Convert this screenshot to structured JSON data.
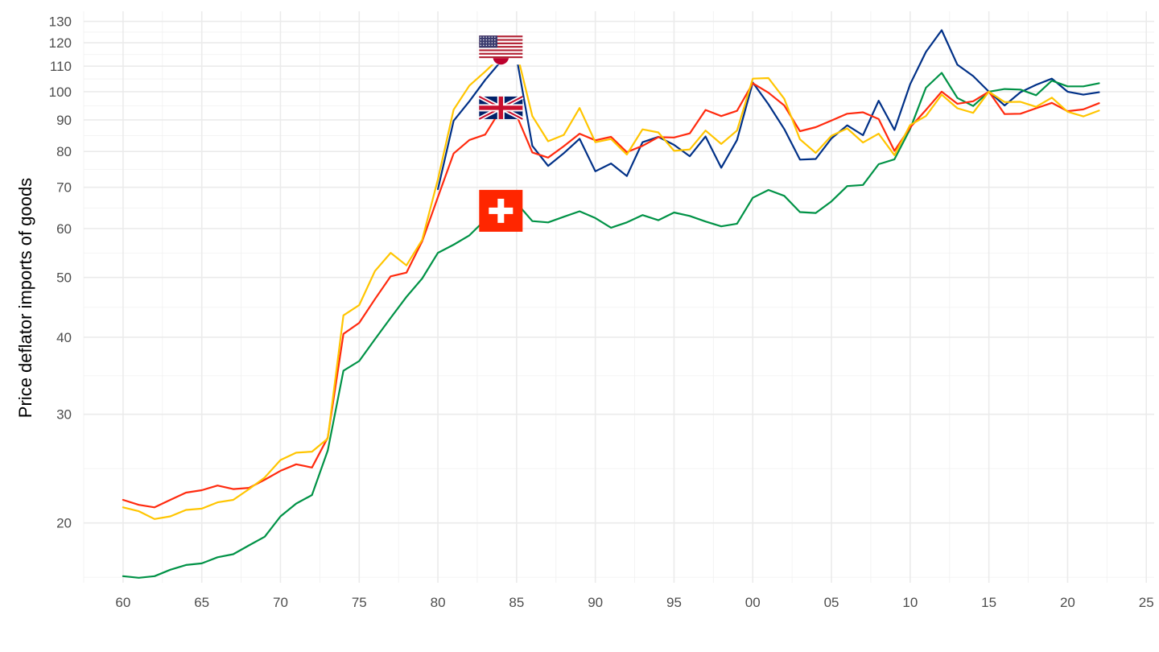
{
  "chart_data": {
    "type": "line",
    "ylabel": "Price deflator imports of goods",
    "xlabel": "",
    "y_scale": "log",
    "ylim": [
      16,
      135
    ],
    "xlim": [
      1957.5,
      2025.5
    ],
    "grid": true,
    "y_ticks": [
      20,
      30,
      40,
      50,
      60,
      70,
      80,
      90,
      100,
      110,
      120,
      130
    ],
    "y_tick_labels": [
      "20",
      "30",
      "40",
      "50",
      "60",
      "70",
      "80",
      "90",
      "100",
      "110",
      "120",
      "130"
    ],
    "x_ticks": [
      1960,
      1965,
      1970,
      1975,
      1980,
      1985,
      1990,
      1995,
      2000,
      2005,
      2010,
      2015,
      2020,
      2025
    ],
    "x_tick_labels": [
      "60",
      "65",
      "70",
      "75",
      "80",
      "85",
      "90",
      "95",
      "00",
      "05",
      "10",
      "15",
      "20",
      "25"
    ],
    "x": [
      1960,
      1961,
      1962,
      1963,
      1964,
      1965,
      1966,
      1967,
      1968,
      1969,
      1970,
      1971,
      1972,
      1973,
      1974,
      1975,
      1976,
      1977,
      1978,
      1979,
      1980,
      1981,
      1982,
      1983,
      1984,
      1985,
      1986,
      1987,
      1988,
      1989,
      1990,
      1991,
      1992,
      1993,
      1994,
      1995,
      1996,
      1997,
      1998,
      1999,
      2000,
      2001,
      2002,
      2003,
      2004,
      2005,
      2006,
      2007,
      2008,
      2009,
      2010,
      2011,
      2012,
      2013,
      2014,
      2015,
      2016,
      2017,
      2018,
      2019,
      2020,
      2021,
      2022
    ],
    "series": [
      {
        "flag": "united-states",
        "color": "#003087",
        "start_year": 1980,
        "values": [
          null,
          null,
          null,
          null,
          null,
          null,
          null,
          null,
          null,
          null,
          null,
          null,
          null,
          null,
          null,
          null,
          null,
          null,
          null,
          null,
          69.5,
          89.7,
          96.5,
          104.5,
          112,
          113.5,
          81.7,
          75.8,
          79.5,
          83.9,
          74.3,
          76.5,
          73,
          82.8,
          84.5,
          82,
          78.6,
          84.6,
          75.3,
          83.5,
          103.5,
          95.4,
          87,
          77.6,
          77.8,
          84,
          88.2,
          85,
          96.7,
          86.7,
          102.8,
          116,
          125.8,
          110.6,
          106,
          100,
          95,
          99.8,
          102.6,
          105,
          100,
          98.9,
          99.8
        ]
      },
      {
        "flag": "switzerland",
        "color": "#009246",
        "start_year": 1960,
        "values": [
          16.4,
          16.3,
          16.4,
          16.8,
          17.1,
          17.2,
          17.6,
          17.8,
          18.4,
          19,
          20.5,
          21.5,
          22.2,
          26.2,
          35.3,
          36.6,
          39.7,
          43,
          46.5,
          49.8,
          54.8,
          56.5,
          58.5,
          62,
          64.5,
          66,
          61.7,
          61.4,
          62.7,
          64,
          62.4,
          60.2,
          61.4,
          63.1,
          61.9,
          63.7,
          62.9,
          61.6,
          60.5,
          61.1,
          67.3,
          69.3,
          67.8,
          63.8,
          63.6,
          66.4,
          70.3,
          70.6,
          76.3,
          77.7,
          87,
          101.5,
          107.3,
          97.7,
          94.8,
          100,
          101,
          100.8,
          98.7,
          104.2,
          102,
          102,
          103.2
        ]
      },
      {
        "flag": "united-kingdom",
        "color": "#ff2a0e",
        "start_year": 1960,
        "values": [
          21.8,
          21.4,
          21.2,
          21.8,
          22.4,
          22.6,
          23,
          22.7,
          22.8,
          23.5,
          24.3,
          24.9,
          24.6,
          27.5,
          40.5,
          42.2,
          46.1,
          50.2,
          50.9,
          57.2,
          67.5,
          79.4,
          83.5,
          85.2,
          93.6,
          91.5,
          79.7,
          78.2,
          81.6,
          85.5,
          83.4,
          84.5,
          79.8,
          81.7,
          84.4,
          84.3,
          85.6,
          93.4,
          91.3,
          93.1,
          103.2,
          99.6,
          95,
          86.3,
          87.6,
          89.8,
          92.1,
          92.6,
          90.3,
          80.2,
          87.5,
          93.4,
          100,
          95.6,
          96.5,
          100,
          92,
          92.1,
          94,
          95.9,
          93,
          93.6,
          95.8
        ]
      },
      {
        "flag": "japan",
        "color": "#ffc500",
        "start_year": 1960,
        "values": [
          21.2,
          20.9,
          20.3,
          20.5,
          21,
          21.1,
          21.6,
          21.8,
          22.7,
          23.7,
          25.3,
          26,
          26.1,
          27.4,
          43.4,
          45.1,
          51.2,
          54.8,
          52.3,
          57.5,
          72.1,
          93.5,
          102.3,
          107.8,
          114,
          116,
          91.3,
          83.1,
          85.1,
          94.1,
          82.8,
          83.8,
          79.1,
          86.9,
          85.9,
          80.2,
          80.6,
          86.5,
          82.3,
          86.5,
          105,
          105.2,
          97.4,
          83.7,
          79.6,
          84.8,
          87.2,
          82.7,
          85.5,
          78.9,
          88.3,
          91.3,
          98.9,
          94,
          92.4,
          100,
          96.2,
          96.3,
          94.5,
          97.8,
          92.8,
          91.2,
          93.2
        ]
      }
    ]
  }
}
